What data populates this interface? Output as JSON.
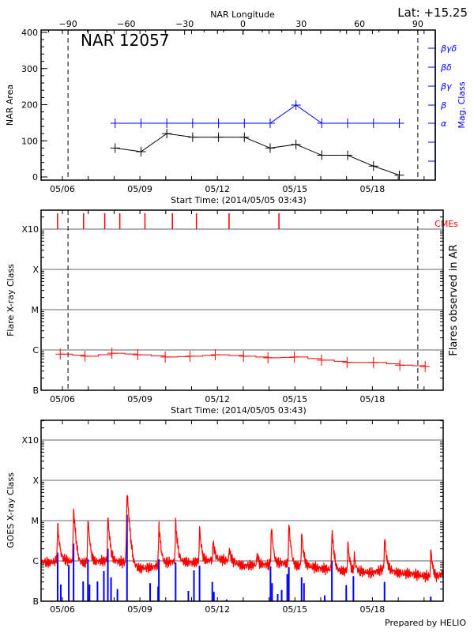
{
  "header": {
    "lat_label": "Lat: +15.25",
    "credit": "Prepared by HELIO"
  },
  "colors": {
    "area": "#000000",
    "mag_class": "#0000ff",
    "flares": "#ff0000",
    "cmes": "#ff0000",
    "goes_long": "#ff0000",
    "goes_short": "#0000ff",
    "grid": "#999999"
  },
  "chart_data": [
    {
      "type": "line",
      "title": "NAR 12057",
      "top_xlabel": "NAR Longitude",
      "top_xticks": [
        -90,
        -60,
        -30,
        0,
        30,
        60,
        90
      ],
      "limb_longitudes": [
        -90,
        90
      ],
      "xlabel": "Start Time: (2014/05/05 03:43)",
      "xticks": [
        "05/06",
        "05/09",
        "05/12",
        "05/15",
        "05/18"
      ],
      "ylabel": "NAR Area",
      "yticks": [
        0,
        100,
        200,
        300,
        400
      ],
      "ylim": [
        0,
        400
      ],
      "y2label": "Mag. Class",
      "y2ticks": [
        "α",
        "β",
        "βγ",
        "βδ",
        "βγδ"
      ],
      "x": [
        "2014-05-08 01:00",
        "2014-05-09 01:00",
        "2014-05-10 01:00",
        "2014-05-11 01:00",
        "2014-05-12 01:00",
        "2014-05-13 01:00",
        "2014-05-14 01:00",
        "2014-05-15 01:00",
        "2014-05-16 01:00",
        "2014-05-17 01:00",
        "2014-05-18 01:00",
        "2014-05-19 01:00"
      ],
      "area": [
        80,
        70,
        120,
        110,
        110,
        110,
        80,
        90,
        60,
        60,
        30,
        5
      ],
      "mag_class": [
        "α",
        "α",
        "α",
        "α",
        "α",
        "α",
        "α",
        "β",
        "α",
        "α",
        "α",
        "α"
      ]
    },
    {
      "type": "line",
      "xlabel": "Start Time: (2014/05/05 03:43)",
      "xticks": [
        "05/06",
        "05/09",
        "05/12",
        "05/15",
        "05/18"
      ],
      "ylabel": "Flare X-ray Class",
      "y2label": "Flares observed in AR",
      "yticks": [
        "B",
        "C",
        "M",
        "X",
        "X10"
      ],
      "yscale": "log",
      "grid": true,
      "cme_label": "CMEs",
      "cmes": [
        "2014-05-05 19:30",
        "2014-05-06 19:40",
        "2014-05-07 15:20",
        "2014-05-08 05:20",
        "2014-05-09 04:40",
        "2014-05-10 06:10",
        "2014-05-11 04:30",
        "2014-05-12 10:50",
        "2014-05-14 09:10"
      ],
      "flares": {
        "x": [
          "2014-05-05 22:00",
          "2014-05-06 21:00",
          "2014-05-07 22:00",
          "2014-05-08 22:00",
          "2014-05-09 23:30",
          "2014-05-10 22:30",
          "2014-05-11 22:00",
          "2014-05-13 00:15",
          "2014-05-13 23:00",
          "2014-05-14 23:30",
          "2014-05-16 00:45",
          "2014-05-17 00:30",
          "2014-05-18 01:00",
          "2014-05-19 01:30",
          "2014-05-20 01:00"
        ],
        "class": [
          "B7.9",
          "B7.0",
          "B8.3",
          "B7.6",
          "B6.7",
          "B7.0",
          "B7.6",
          "B7.0",
          "B6.4",
          "B6.7",
          "B5.6",
          "B4.9",
          "B4.9",
          "B4.2",
          "B3.9"
        ]
      }
    },
    {
      "type": "line",
      "xticks": [
        "05/06",
        "05/09",
        "05/12",
        "05/15",
        "05/18"
      ],
      "ylabel": "GOES X-ray Class",
      "yticks": [
        "B",
        "C",
        "M",
        "X",
        "X10"
      ],
      "yscale": "log",
      "grid": true,
      "background": {
        "x": [
          "2014-05-05 00:00",
          "2014-05-05 12:00",
          "2014-05-06 00:00",
          "2014-05-06 12:00",
          "2014-05-07 00:00",
          "2014-05-07 12:00",
          "2014-05-08 00:00",
          "2014-05-08 12:00",
          "2014-05-09 00:00",
          "2014-05-09 12:00",
          "2014-05-10 00:00",
          "2014-05-10 12:00",
          "2014-05-11 00:00",
          "2014-05-11 12:00",
          "2014-05-12 00:00",
          "2014-05-12 12:00",
          "2014-05-13 00:00",
          "2014-05-13 12:00",
          "2014-05-14 00:00",
          "2014-05-14 12:00",
          "2014-05-15 00:00",
          "2014-05-15 12:00",
          "2014-05-16 00:00",
          "2014-05-16 12:00",
          "2014-05-17 00:00",
          "2014-05-17 12:00",
          "2014-05-18 00:00",
          "2014-05-18 12:00",
          "2014-05-19 00:00",
          "2014-05-19 12:00",
          "2014-05-20 00:00",
          "2014-05-20 12:00",
          "2014-05-21 00:00"
        ],
        "class": [
          "C1.0",
          "C0.9",
          "C1.1",
          "C0.9",
          "C0.9",
          "C1.0",
          "C1.0",
          "C0.9",
          "B6.5",
          "B7.0",
          "C0.9",
          "C1.0",
          "B9.0",
          "C1.0",
          "C1.1",
          "C1.0",
          "B7.5",
          "B8.0",
          "B8.0",
          "B9.0",
          "B7.5",
          "B7.5",
          "B6.5",
          "B6.0",
          "B5.5",
          "B5.5",
          "B5.0",
          "B6.5",
          "B5.0",
          "B4.8",
          "B4.2",
          "B4.0",
          "B6.0"
        ]
      },
      "long_peaks": {
        "x": [
          "2014-05-05 19:34",
          "2014-05-06 10:22",
          "2014-05-06 23:42",
          "2014-05-07 18:13",
          "2014-05-08 12:00",
          "2014-05-09 17:37",
          "2014-05-10 09:11",
          "2014-05-11 07:24",
          "2014-05-11 20:00",
          "2014-05-12 10:50",
          "2014-05-13 12:44",
          "2014-05-14 02:04",
          "2014-05-14 18:22",
          "2014-05-15 06:13",
          "2014-05-16 10:22",
          "2014-05-17 01:10",
          "2014-05-17 07:06",
          "2014-05-18 11:16",
          "2014-05-20 06:13"
        ],
        "class": [
          "C8.0",
          "M1.9",
          "M1.1",
          "M1.2",
          "M5.3",
          "C8.0",
          "C8.7",
          "C6.6",
          "C3.4",
          "C2.2",
          "C1.6",
          "C7.0",
          "C8.3",
          "C5.0",
          "C5.8",
          "C2.8",
          "C1.4",
          "C3.9",
          "C2.0"
        ]
      },
      "short_peaks": {
        "x": [
          "2014-05-05 19:34",
          "2014-05-05 22:30",
          "2014-05-06 05:56",
          "2014-05-06 10:22",
          "2014-05-06 19:16",
          "2014-05-06 23:42",
          "2014-05-07 01:11",
          "2014-05-07 08:35",
          "2014-05-07 14:31",
          "2014-05-07 18:13",
          "2014-05-07 21:11",
          "2014-05-08 03:07",
          "2014-05-08 12:00",
          "2014-05-09 09:29",
          "2014-05-09 16:53",
          "2014-05-09 17:37",
          "2014-05-10 09:11",
          "2014-05-10 21:02",
          "2014-05-11 02:13",
          "2014-05-11 07:24",
          "2014-05-11 19:15",
          "2014-05-11 20:44",
          "2014-05-12 08:35",
          "2014-05-14 01:19",
          "2014-05-14 02:48",
          "2014-05-14 08:00",
          "2014-05-14 11:42",
          "2014-05-14 16:53",
          "2014-05-14 18:22",
          "2014-05-15 06:13",
          "2014-05-15 08:26",
          "2014-05-16 03:42",
          "2014-05-16 10:22",
          "2014-05-16 23:42",
          "2014-05-17 06:22",
          "2014-05-18 11:16",
          "2014-05-20 06:13"
        ],
        "class": [
          "C1.6",
          "B2.6",
          "B7.9",
          "C2.7",
          "B3.1",
          "C1.1",
          "B2.6",
          "B3.1",
          "B5.6",
          "C2.0",
          "B3.9",
          "B2.0",
          "M1.4",
          "B2.8",
          "B2.3",
          "C1.1",
          "B9.1",
          "B1.8",
          "B5.8",
          "B7.6",
          "B3.0",
          "B1.7",
          "B1.1",
          "B7.3",
          "B2.8",
          "B1.5",
          "B1.9",
          "B4.7",
          "B7.0",
          "B3.9",
          "B2.8",
          "B1.4",
          "C1.0",
          "B2.5",
          "B4.2",
          "B3.0",
          "B1.3"
        ]
      }
    }
  ]
}
